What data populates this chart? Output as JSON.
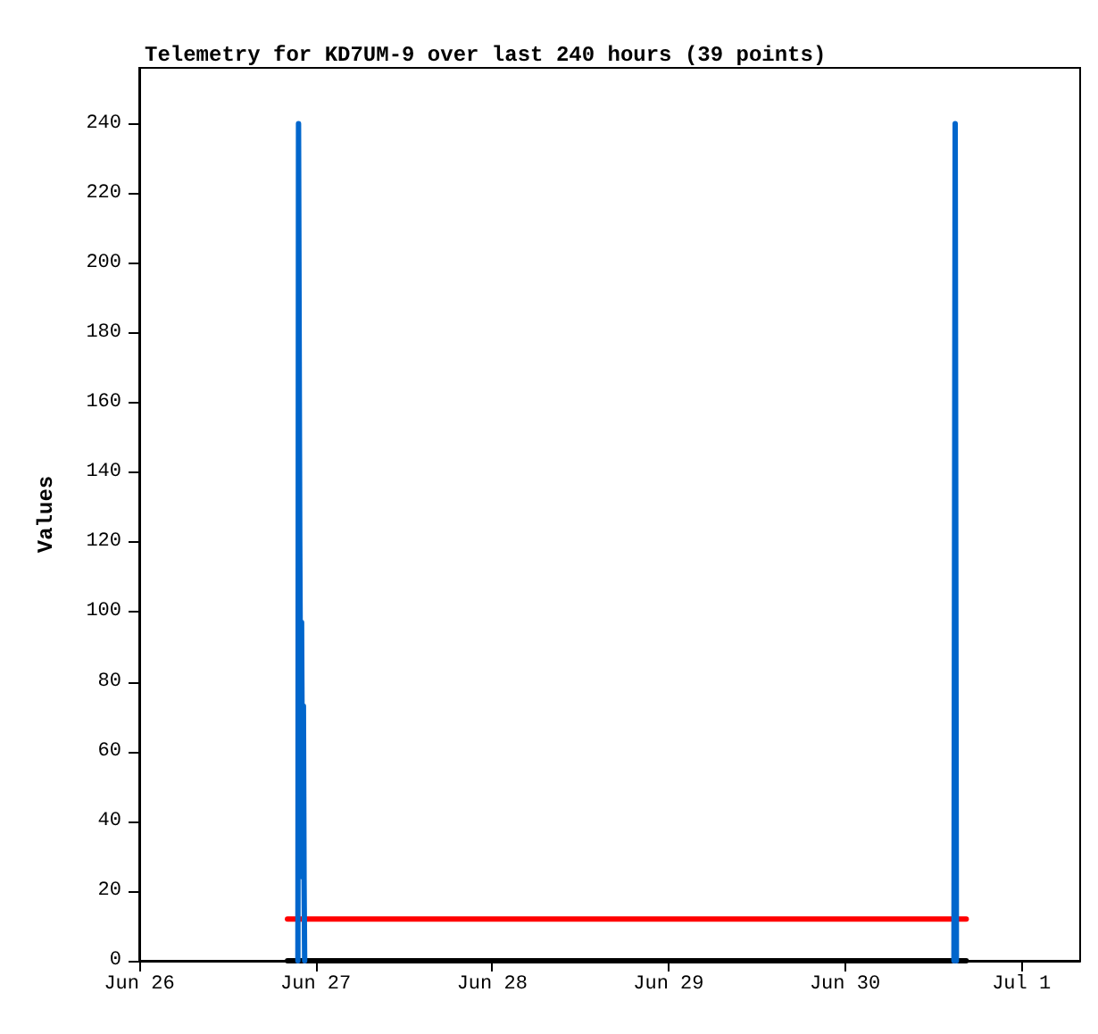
{
  "chart_data": {
    "type": "line",
    "title": "Telemetry for KD7UM-9 over last 240 hours (39 points)",
    "ylabel": "Values",
    "xlim": [
      "--06-26T00:00",
      "--07-01T08:00"
    ],
    "xticks": [
      {
        "value": "--06-26",
        "label": "Jun 26"
      },
      {
        "value": "--06-27",
        "label": "Jun 27"
      },
      {
        "value": "--06-28",
        "label": "Jun 28"
      },
      {
        "value": "--06-29",
        "label": "Jun 29"
      },
      {
        "value": "--06-30",
        "label": "Jun 30"
      },
      {
        "value": "--07-01",
        "label": "Jul 1"
      }
    ],
    "ylim": [
      0,
      256
    ],
    "yticks": [
      0,
      20,
      40,
      60,
      80,
      100,
      120,
      140,
      160,
      180,
      200,
      220,
      240
    ],
    "grid": false,
    "marker": "none",
    "line_style": "solid",
    "series": [
      {
        "color": "#000000",
        "x": [
          "--06-26T20:10",
          "--06-30T16:30"
        ],
        "values": [
          0,
          0
        ]
      },
      {
        "color": "#ff0000",
        "x": [
          "--06-26T20:10",
          "--06-26T20:40",
          "--06-30T16:30"
        ],
        "values": [
          12,
          12,
          12
        ]
      },
      {
        "color": "#0066cc",
        "x": [
          "--06-26T21:35",
          "--06-26T21:40",
          "--06-26T21:50",
          "--06-26T22:00",
          "--06-26T22:05",
          "--06-26T22:15",
          "--06-26T22:20",
          "--06-26T22:25",
          "--06-26T22:30",
          "--06-28T12:00",
          "--06-30T14:50",
          "--06-30T15:00",
          "--06-30T15:10"
        ],
        "values": [
          0,
          240,
          121,
          48,
          97,
          24,
          73,
          24,
          0,
          null,
          0,
          240,
          0
        ]
      }
    ]
  }
}
